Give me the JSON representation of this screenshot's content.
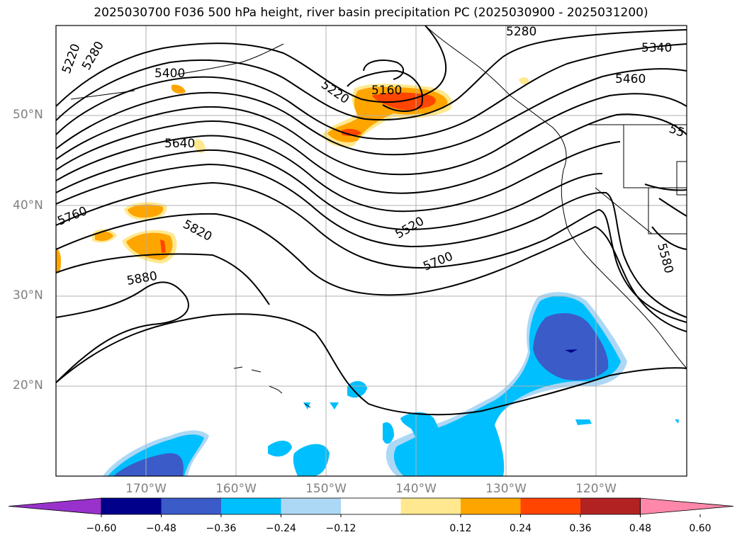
{
  "title": "2025030700 F036 500 hPa height, river basin precipitation PC (2025030900 - 2025031200)",
  "lat_labels": [
    "50°N",
    "40°N",
    "30°N",
    "20°N"
  ],
  "lon_labels": [
    "170°W",
    "160°W",
    "150°W",
    "140°W",
    "130°W",
    "120°W"
  ],
  "contour_labels": [
    "5220",
    "5280",
    "5400",
    "5220",
    "5160",
    "5280",
    "5340",
    "5460",
    "55",
    "5640",
    "5760",
    "5820",
    "5880",
    "5520",
    "5700",
    "5580"
  ],
  "colorbar": {
    "ticks": [
      "−0.60",
      "−0.48",
      "−0.36",
      "−0.24",
      "−0.12",
      "0.12",
      "0.24",
      "0.36",
      "0.48",
      "0.60"
    ],
    "colors": [
      "#9932cc",
      "#00008b",
      "#3a5bc8",
      "#00bfff",
      "#add8f5",
      "#ffffff",
      "#ffe88f",
      "#ffa500",
      "#ff4500",
      "#b22222",
      "#ff88aa"
    ]
  }
}
